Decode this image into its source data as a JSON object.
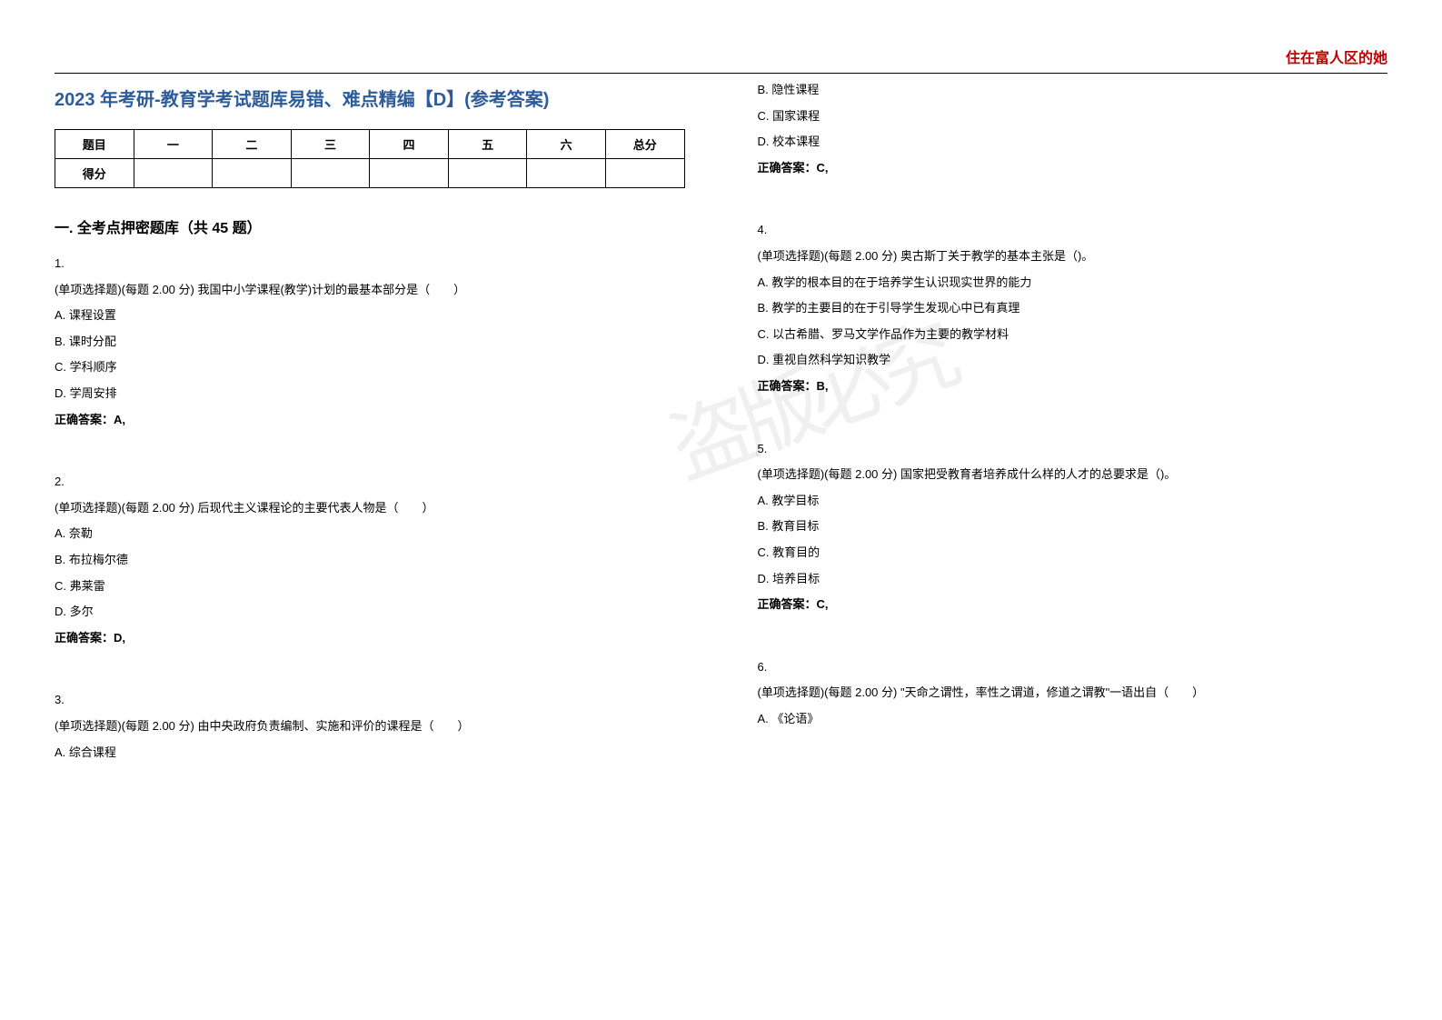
{
  "header": {
    "brand": "住在富人区的她"
  },
  "title": "2023 年考研-教育学考试题库易错、难点精编【D】(参考答案)",
  "score_table": {
    "row1": [
      "题目",
      "一",
      "二",
      "三",
      "四",
      "五",
      "六",
      "总分"
    ],
    "row2_label": "得分"
  },
  "section_heading": "一. 全考点押密题库（共 45 题）",
  "watermark": "盗版必究",
  "left_questions": [
    {
      "num": "1.",
      "stem": "(单项选择题)(每题 2.00 分) 我国中小学课程(教学)计划的最基本部分是（　　）",
      "options": [
        "A.  课程设置",
        "B.  课时分配",
        "C.  学科顺序",
        "D.  学周安排"
      ],
      "answer": "正确答案：A,"
    },
    {
      "num": "2.",
      "stem": "(单项选择题)(每题 2.00 分) 后现代主义课程论的主要代表人物是（　　）",
      "options": [
        "A.  奈勒",
        "B.  布拉梅尔德",
        "C.  弗莱雷",
        "D.  多尔"
      ],
      "answer": "正确答案：D,"
    },
    {
      "num": "3.",
      "stem": "(单项选择题)(每题 2.00 分) 由中央政府负责编制、实施和评价的课程是（　　）",
      "options": [
        "A.  综合课程"
      ],
      "answer": ""
    }
  ],
  "right_continued": {
    "options": [
      "B.  隐性课程",
      "C.  国家课程",
      "D.  校本课程"
    ],
    "answer": "正确答案：C,"
  },
  "right_questions": [
    {
      "num": "4.",
      "stem": "(单项选择题)(每题 2.00 分) 奥古斯丁关于教学的基本主张是（)。",
      "options": [
        "A.  教学的根本目的在于培养学生认识现实世界的能力",
        "B.  教学的主要目的在于引导学生发现心中已有真理",
        "C.  以古希腊、罗马文学作品作为主要的教学材料",
        "D.  重视自然科学知识教学"
      ],
      "answer": "正确答案：B,"
    },
    {
      "num": "5.",
      "stem": "(单项选择题)(每题 2.00 分) 国家把受教育者培养成什么样的人才的总要求是（)。",
      "options": [
        "A.  教学目标",
        "B.  教育目标",
        "C.  教育目的",
        "D.  培养目标"
      ],
      "answer": "正确答案：C,"
    },
    {
      "num": "6.",
      "stem": "(单项选择题)(每题 2.00 分) \"天命之谓性，率性之谓道，修道之谓教\"一语出自（　　）",
      "options": [
        "A.  《论语》"
      ],
      "answer": ""
    }
  ]
}
